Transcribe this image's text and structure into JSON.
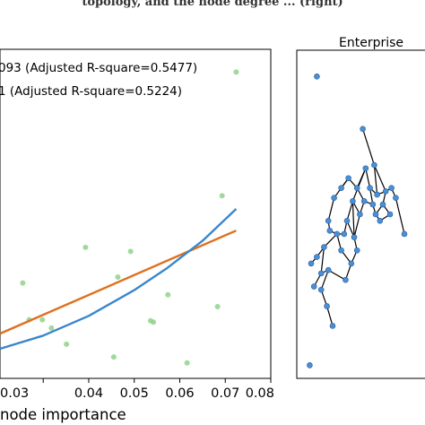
{
  "caption_fragment": "topology, and the node degree ... (right)",
  "chart_data": [
    {
      "type": "scatter",
      "xlabel": "node importance",
      "xticks": [
        "0.03",
        "0.04",
        "0.05",
        "0.06",
        "0.07",
        "0.08"
      ],
      "xlim": [
        0.0205,
        0.08
      ],
      "ylim": [
        0.0,
        1.0
      ],
      "legend_lines": [
        "093 (Adjusted R-square=0.5477)",
        "1 (Adjusted R-square=0.5224)"
      ],
      "series": [
        {
          "kind": "points",
          "color": "#8fd48a",
          "points": [
            [
              0.0724,
              0.931
            ],
            [
              0.0693,
              0.555
            ],
            [
              0.0683,
              0.218
            ],
            [
              0.0616,
              0.047
            ],
            [
              0.0574,
              0.254
            ],
            [
              0.0542,
              0.171
            ],
            [
              0.0536,
              0.175
            ],
            [
              0.0492,
              0.386
            ],
            [
              0.0464,
              0.308
            ],
            [
              0.0455,
              0.065
            ],
            [
              0.0393,
              0.398
            ],
            [
              0.0351,
              0.104
            ],
            [
              0.0318,
              0.153
            ],
            [
              0.0298,
              0.178
            ],
            [
              0.0269,
              0.178
            ],
            [
              0.0255,
              0.29
            ]
          ]
        },
        {
          "kind": "line",
          "color": "#e07020",
          "points": [
            [
              0.0205,
              0.136
            ],
            [
              0.0724,
              0.449
            ]
          ]
        },
        {
          "kind": "curve",
          "color": "#3a86cc",
          "points": [
            [
              0.0205,
              0.09
            ],
            [
              0.03,
              0.13
            ],
            [
              0.04,
              0.19
            ],
            [
              0.05,
              0.268
            ],
            [
              0.057,
              0.333
            ],
            [
              0.065,
              0.418
            ],
            [
              0.0724,
              0.515
            ]
          ]
        }
      ]
    },
    {
      "type": "network",
      "title": "Enterprise",
      "node_color": "#4a8fd6",
      "edge_color": "#000000",
      "nodes": [
        [
          0.14,
          0.08
        ],
        [
          0.46,
          0.24
        ],
        [
          0.54,
          0.35
        ],
        [
          0.48,
          0.36
        ],
        [
          0.36,
          0.39
        ],
        [
          0.31,
          0.42
        ],
        [
          0.42,
          0.42
        ],
        [
          0.51,
          0.42
        ],
        [
          0.56,
          0.44
        ],
        [
          0.62,
          0.43
        ],
        [
          0.66,
          0.42
        ],
        [
          0.26,
          0.45
        ],
        [
          0.39,
          0.46
        ],
        [
          0.47,
          0.46
        ],
        [
          0.53,
          0.47
        ],
        [
          0.6,
          0.47
        ],
        [
          0.69,
          0.45
        ],
        [
          0.44,
          0.5
        ],
        [
          0.55,
          0.5
        ],
        [
          0.65,
          0.5
        ],
        [
          0.35,
          0.52
        ],
        [
          0.22,
          0.52
        ],
        [
          0.58,
          0.52
        ],
        [
          0.23,
          0.55
        ],
        [
          0.28,
          0.56
        ],
        [
          0.33,
          0.56
        ],
        [
          0.4,
          0.57
        ],
        [
          0.75,
          0.56
        ],
        [
          0.14,
          0.63
        ],
        [
          0.17,
          0.68
        ],
        [
          0.19,
          0.6
        ],
        [
          0.1,
          0.65
        ],
        [
          0.31,
          0.61
        ],
        [
          0.42,
          0.61
        ],
        [
          0.38,
          0.65
        ],
        [
          0.12,
          0.72
        ],
        [
          0.22,
          0.67
        ],
        [
          0.17,
          0.73
        ],
        [
          0.21,
          0.78
        ],
        [
          0.34,
          0.7
        ],
        [
          0.25,
          0.84
        ],
        [
          0.09,
          0.96
        ]
      ],
      "edges": [
        [
          1,
          2
        ],
        [
          2,
          8
        ],
        [
          8,
          7
        ],
        [
          7,
          3
        ],
        [
          3,
          6
        ],
        [
          6,
          4
        ],
        [
          4,
          5
        ],
        [
          5,
          11
        ],
        [
          11,
          21
        ],
        [
          3,
          12
        ],
        [
          12,
          17
        ],
        [
          6,
          13
        ],
        [
          13,
          14
        ],
        [
          14,
          7
        ],
        [
          8,
          9
        ],
        [
          9,
          10
        ],
        [
          10,
          16
        ],
        [
          9,
          15
        ],
        [
          15,
          18
        ],
        [
          18,
          14
        ],
        [
          15,
          19
        ],
        [
          19,
          22
        ],
        [
          22,
          18
        ],
        [
          13,
          17
        ],
        [
          17,
          26
        ],
        [
          26,
          20
        ],
        [
          20,
          12
        ],
        [
          21,
          23
        ],
        [
          23,
          24
        ],
        [
          24,
          25
        ],
        [
          25,
          20
        ],
        [
          16,
          27
        ],
        [
          24,
          30
        ],
        [
          30,
          28
        ],
        [
          28,
          31
        ],
        [
          30,
          29
        ],
        [
          29,
          35
        ],
        [
          29,
          36
        ],
        [
          36,
          37
        ],
        [
          37,
          38
        ],
        [
          38,
          40
        ],
        [
          24,
          32
        ],
        [
          32,
          34
        ],
        [
          34,
          33
        ],
        [
          33,
          26
        ],
        [
          36,
          39
        ],
        [
          39,
          34
        ],
        [
          12,
          26
        ],
        [
          5,
          4
        ],
        [
          2,
          9
        ]
      ]
    }
  ]
}
